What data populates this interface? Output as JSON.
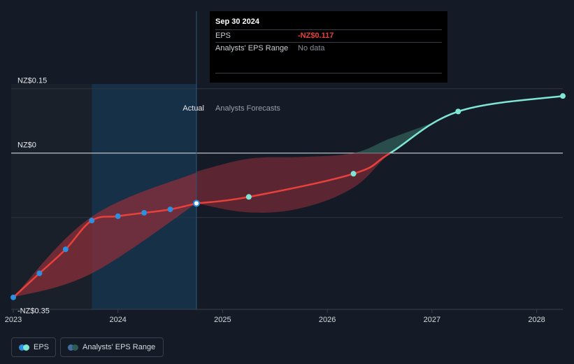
{
  "tooltip": {
    "date": "Sep 30 2024",
    "eps_label": "EPS",
    "eps_value": "-NZ$0.117",
    "range_label": "Analysts' EPS Range",
    "range_value": "No data"
  },
  "labels": {
    "actual": "Actual",
    "forecast": "Analysts Forecasts"
  },
  "legend": {
    "eps": "EPS",
    "range": "Analysts' EPS Range"
  },
  "colors": {
    "actual_line": "#e8413c",
    "forecast_line_negative": "#e8413c",
    "forecast_line_positive": "#7fe6d6",
    "range_negative": "#8b2e3a",
    "range_positive": "#2e5a55",
    "actual_dot": "#2d8fe0",
    "forecast_dot": "#7fe6d6"
  },
  "chart_data": {
    "type": "line",
    "title": "",
    "xlabel": "",
    "ylabel": "",
    "xlim": [
      2022.98,
      2028.25
    ],
    "ylim": [
      -0.364,
      0.161
    ],
    "x_ticks": [
      2023,
      2024,
      2025,
      2026,
      2027,
      2028
    ],
    "x_tick_labels": [
      "2023",
      "2024",
      "2025",
      "2026",
      "2027",
      "2028"
    ],
    "y_labels": [
      {
        "value": 0.15,
        "label": "NZ$0.15"
      },
      {
        "value": 0,
        "label": "NZ$0"
      },
      {
        "value": -0.35,
        "label": "-NZ$0.35"
      }
    ],
    "y_gridlines": [
      0.15,
      0,
      -0.15
    ],
    "past_shade_until": 2023.75,
    "actual_end": 2024.75,
    "series": [
      {
        "name": "EPS",
        "segment": "actual",
        "x": [
          2023.0,
          2023.25,
          2023.5,
          2023.75,
          2024.0,
          2024.25,
          2024.5,
          2024.75
        ],
        "y": [
          -0.336,
          -0.28,
          -0.224,
          -0.157,
          -0.147,
          -0.139,
          -0.131,
          -0.117
        ]
      },
      {
        "name": "EPS",
        "segment": "forecast",
        "x": [
          2024.75,
          2025.25,
          2026.25,
          2026.6,
          2027.25,
          2028.25
        ],
        "y": [
          -0.117,
          -0.102,
          -0.048,
          0.0,
          0.097,
          0.133
        ]
      }
    ],
    "range": {
      "x": [
        2024.75,
        2025.25,
        2025.75,
        2026.25,
        2026.6,
        2027.0
      ],
      "high": [
        -0.043,
        -0.013,
        -0.009,
        0.0,
        0.034,
        0.07
      ],
      "low": [
        -0.117,
        -0.138,
        -0.128,
        -0.08,
        0.0,
        0.07
      ]
    },
    "actual_range": {
      "x": [
        2023.0,
        2023.75,
        2024.75
      ],
      "high": [
        -0.336,
        -0.148,
        -0.045
      ],
      "low": [
        -0.336,
        -0.28,
        -0.117
      ]
    }
  }
}
